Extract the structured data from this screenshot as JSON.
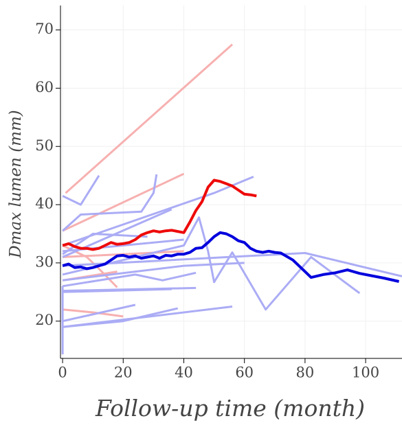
{
  "chart_data": {
    "type": "line",
    "xlabel": "Follow-up time (month)",
    "ylabel": "Dmax lumen (mm)",
    "xlim": [
      -0.7,
      112
    ],
    "ylim": [
      13.6,
      74.2
    ],
    "xticks": [
      0,
      20,
      40,
      60,
      80,
      100
    ],
    "yticks": [
      20,
      30,
      40,
      50,
      60,
      70
    ],
    "grid": true,
    "series": [
      {
        "color": "#f7b0b0",
        "linewidth": 3,
        "x": [
          1,
          56
        ],
        "values": [
          42,
          67.5
        ]
      },
      {
        "color": "#f7b0b0",
        "linewidth": 3,
        "x": [
          0,
          40
        ],
        "values": [
          35.5,
          45.3
        ]
      },
      {
        "color": "#f7b0b0",
        "linewidth": 3,
        "x": [
          0,
          8,
          12,
          18
        ],
        "values": [
          33,
          31,
          29,
          25.8
        ]
      },
      {
        "color": "#f7b0b0",
        "linewidth": 3,
        "x": [
          0,
          10,
          20
        ],
        "values": [
          22,
          21.5,
          20.8
        ]
      },
      {
        "color": "#f7b0b0",
        "linewidth": 3,
        "x": [
          0,
          20,
          40
        ],
        "values": [
          31,
          31.5,
          32
        ]
      },
      {
        "color": "#f7b0b0",
        "linewidth": 3,
        "x": [
          0,
          18
        ],
        "values": [
          27,
          28.5
        ]
      },
      {
        "color": "#abacf5",
        "linewidth": 3,
        "x": [
          0,
          6,
          12
        ],
        "values": [
          41.5,
          40,
          45
        ]
      },
      {
        "color": "#abacf5",
        "linewidth": 3,
        "x": [
          0,
          6,
          26,
          30,
          31
        ],
        "values": [
          35.5,
          38.3,
          38.8,
          42,
          45.2
        ]
      },
      {
        "color": "#abacf5",
        "linewidth": 3,
        "x": [
          0,
          50,
          63
        ],
        "values": [
          33,
          42,
          44.8
        ]
      },
      {
        "color": "#abacf5",
        "linewidth": 3,
        "x": [
          0,
          36
        ],
        "values": [
          31,
          39.2
        ]
      },
      {
        "color": "#abacf5",
        "linewidth": 3,
        "x": [
          0,
          40,
          45,
          48,
          50,
          56,
          67,
          82,
          98
        ],
        "values": [
          28,
          33,
          37.8,
          32,
          26.7,
          31.8,
          22,
          31,
          24.8
        ]
      },
      {
        "color": "#abacf5",
        "linewidth": 3,
        "x": [
          0,
          80,
          112
        ],
        "values": [
          29.5,
          31.7,
          27.7
        ]
      },
      {
        "color": "#abacf5",
        "linewidth": 3,
        "x": [
          0,
          40,
          60
        ],
        "values": [
          27,
          29.5,
          30
        ]
      },
      {
        "color": "#abacf5",
        "linewidth": 3,
        "x": [
          0,
          24,
          33,
          44
        ],
        "values": [
          26,
          28,
          27,
          28.3
        ]
      },
      {
        "color": "#abacf5",
        "linewidth": 3,
        "x": [
          0,
          44
        ],
        "values": [
          25.2,
          25.7
        ]
      },
      {
        "color": "#abacf5",
        "linewidth": 3,
        "x": [
          0,
          36
        ],
        "values": [
          25,
          25.5
        ]
      },
      {
        "color": "#abacf5",
        "linewidth": 3,
        "x": [
          0,
          20,
          38
        ],
        "values": [
          19,
          20,
          22.2
        ]
      },
      {
        "color": "#abacf5",
        "linewidth": 3,
        "x": [
          0,
          24
        ],
        "values": [
          20,
          22.8
        ]
      },
      {
        "color": "#abacf5",
        "linewidth": 3,
        "x": [
          0,
          56
        ],
        "values": [
          19,
          22.5
        ]
      },
      {
        "color": "#abacf5",
        "linewidth": 3,
        "x": [
          0,
          0
        ],
        "values": [
          14.3,
          26
        ]
      },
      {
        "color": "#abacf5",
        "linewidth": 3,
        "x": [
          0,
          10,
          28
        ],
        "values": [
          31.5,
          35,
          34.5
        ]
      },
      {
        "color": "#abacf5",
        "linewidth": 3,
        "x": [
          0,
          40
        ],
        "values": [
          32,
          34
        ]
      },
      {
        "color": "#ee0a0a",
        "linewidth": 4,
        "x": [
          0,
          2,
          4,
          6,
          8,
          10,
          12,
          14,
          16,
          18,
          20,
          22,
          24,
          26,
          28,
          30,
          32,
          34,
          36,
          38,
          40,
          42,
          44,
          46,
          48,
          50,
          52,
          54,
          56,
          58,
          60,
          62,
          64
        ],
        "values": [
          33,
          33.3,
          32.8,
          32.5,
          32.5,
          32.3,
          32.5,
          33,
          33.5,
          33.2,
          33.3,
          33.5,
          34,
          34.8,
          35.2,
          35.5,
          35.3,
          35.5,
          35.6,
          35.4,
          35.2,
          37,
          39,
          40.5,
          43,
          44.2,
          44,
          43.6,
          43.2,
          42.5,
          41.8,
          41.7,
          41.5
        ]
      },
      {
        "color": "#0000dd",
        "linewidth": 4,
        "x": [
          0,
          2,
          4,
          6,
          8,
          10,
          12,
          14,
          16,
          18,
          20,
          22,
          24,
          26,
          28,
          30,
          32,
          34,
          36,
          38,
          40,
          42,
          44,
          46,
          48,
          50,
          52,
          54,
          56,
          58,
          60,
          62,
          64,
          66,
          68,
          70,
          72,
          76,
          80,
          82,
          86,
          90,
          94,
          98,
          102,
          106,
          111
        ],
        "values": [
          29.5,
          29.8,
          29.2,
          29.3,
          29,
          29.2,
          29.5,
          29.8,
          30.5,
          31.2,
          31.3,
          31,
          31.2,
          30.8,
          31,
          31.2,
          30.8,
          31.3,
          31.2,
          31.5,
          31.5,
          31.8,
          32.5,
          32.6,
          33.5,
          34.5,
          35.2,
          35,
          34.5,
          33.8,
          33.5,
          32.5,
          32,
          31.8,
          32,
          31.8,
          31.7,
          30.5,
          28.5,
          27.5,
          28,
          28.3,
          28.8,
          28.2,
          27.8,
          27.4,
          26.8
        ]
      }
    ]
  }
}
